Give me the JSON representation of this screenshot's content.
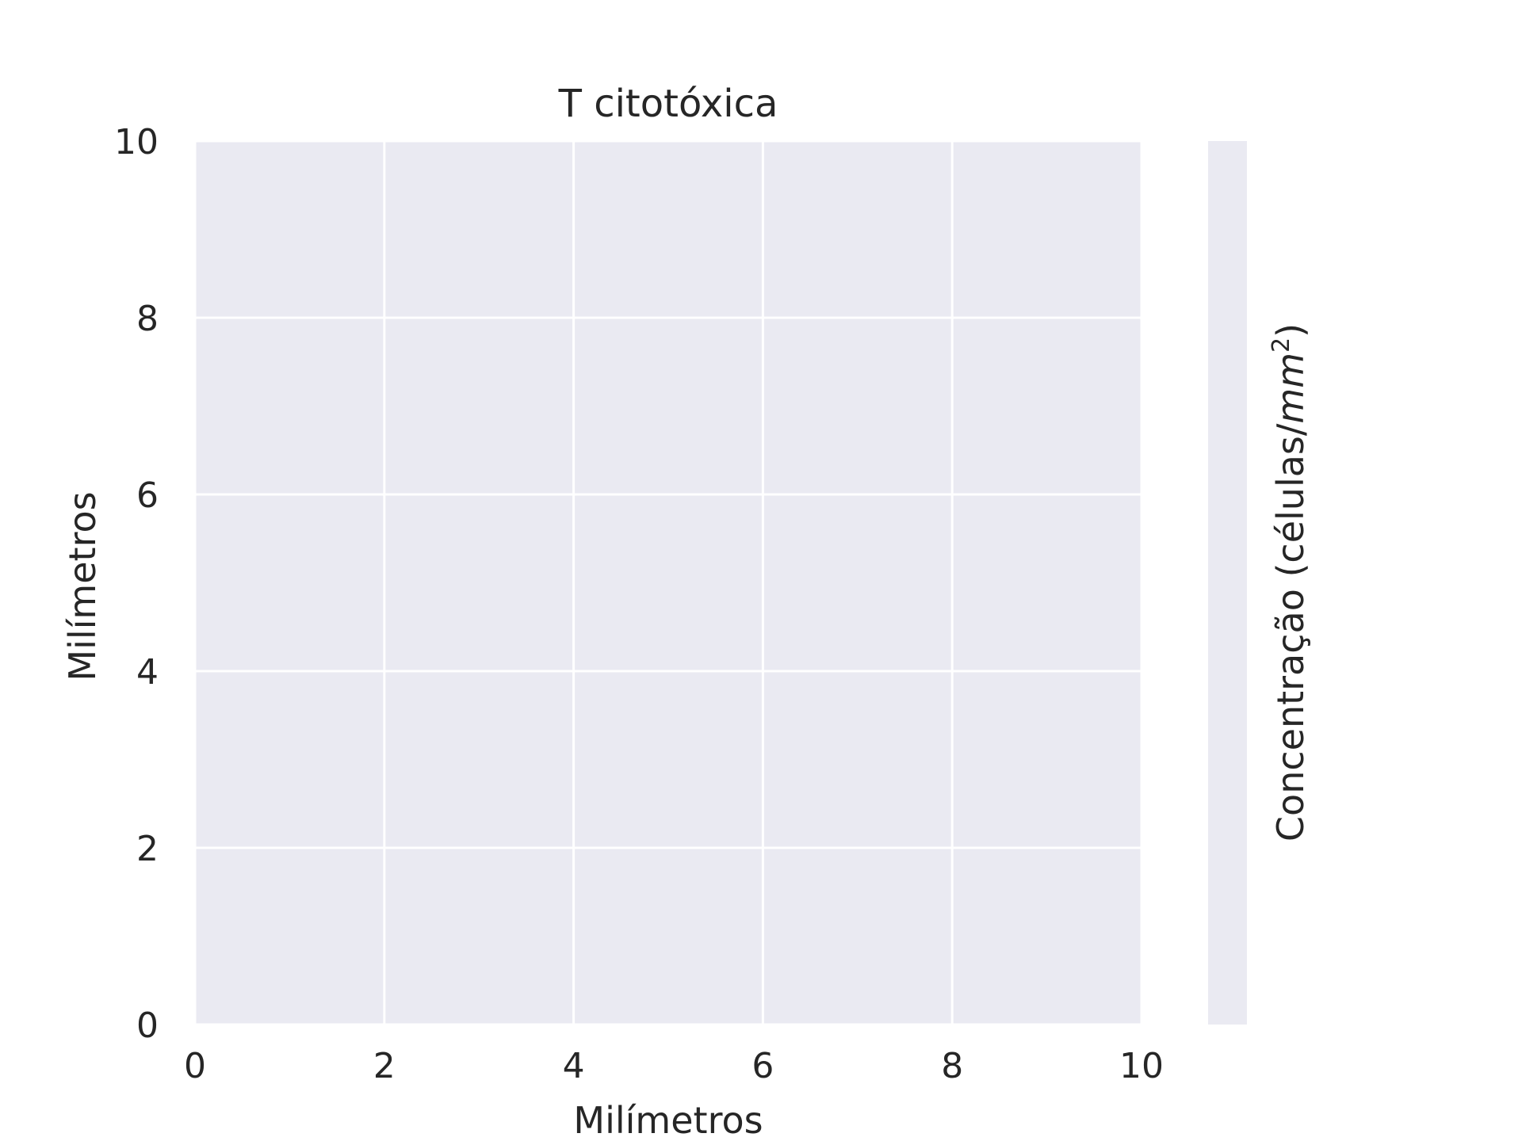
{
  "chart_data": {
    "type": "heatmap",
    "title": "T citotóxica",
    "xlabel": "Milímetros",
    "ylabel": "Milímetros",
    "xlim": [
      0,
      10
    ],
    "ylim": [
      0,
      10
    ],
    "xticks": [
      "0",
      "2",
      "4",
      "6",
      "8",
      "10"
    ],
    "yticks": [
      "0",
      "2",
      "4",
      "6",
      "8",
      "10"
    ],
    "grid": true,
    "colorbar": {
      "label_prefix": "Concentração (células/",
      "label_unit": "mm",
      "label_exp": "2",
      "label_suffix": ")"
    },
    "values": [],
    "colors": {
      "plot_background": "#eaeaf2",
      "grid": "#ffffff",
      "text": "#262626"
    }
  }
}
